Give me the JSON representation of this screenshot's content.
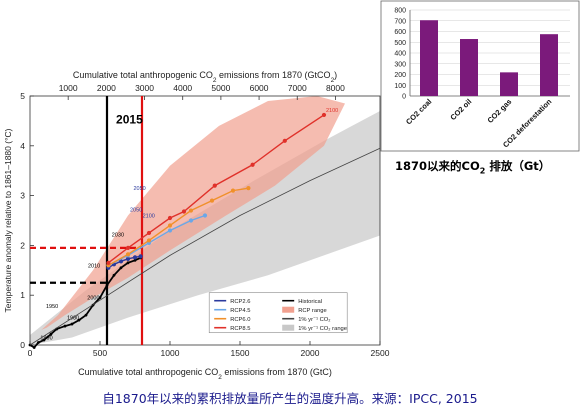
{
  "chart_data": [
    {
      "type": "line",
      "title": "",
      "ylabel": "Temperature anomaly relative to 1861–1880 (°C)",
      "xlabel_bottom_parts": [
        "Cumulative total anthropogenic CO",
        "2",
        " emissions from 1870 (GtC)"
      ],
      "xlabel_top_parts": [
        "Cumulative total anthropogenic CO",
        "2",
        " emissions from 1870 (GtCO",
        "2",
        ")"
      ],
      "xlim": [
        0,
        2500
      ],
      "ylim": [
        0,
        5
      ],
      "x_ticks": [
        0,
        500,
        1000,
        1500,
        2000,
        2500
      ],
      "y_ticks": [
        0,
        1,
        2,
        3,
        4,
        5
      ],
      "x_top_ticks": [
        1000,
        2000,
        3000,
        4000,
        5000,
        6000,
        7000,
        8000
      ],
      "annotation": "2015",
      "series": [
        {
          "name": "Historical",
          "color": "#000000",
          "points": [
            [
              0,
              0.0
            ],
            [
              30,
              -0.05
            ],
            [
              60,
              0.05
            ],
            [
              100,
              0.1
            ],
            [
              150,
              0.22
            ],
            [
              190,
              0.32
            ],
            [
              250,
              0.38
            ],
            [
              300,
              0.42
            ],
            [
              350,
              0.5
            ],
            [
              400,
              0.6
            ],
            [
              450,
              0.8
            ],
            [
              500,
              0.95
            ],
            [
              550,
              1.2
            ],
            [
              600,
              1.4
            ],
            [
              650,
              1.55
            ],
            [
              700,
              1.65
            ],
            [
              750,
              1.7
            ],
            [
              790,
              1.75
            ]
          ],
          "labels": [
            {
              "x": 60,
              "y": 0.05,
              "text": "1890"
            },
            {
              "x": 100,
              "y": 0.68,
              "text": "1950"
            },
            {
              "x": 250,
              "y": 0.45,
              "text": "1980"
            },
            {
              "x": 395,
              "y": 0.85,
              "text": "2000"
            },
            {
              "x": 400,
              "y": 1.5,
              "text": "2010"
            },
            {
              "x": 570,
              "y": 2.12,
              "text": "2030"
            },
            {
              "x": 700,
              "y": 2.62,
              "text": "2050"
            },
            {
              "x": 725,
              "y": 3.05,
              "text": "2050"
            },
            {
              "x": 790,
              "y": 2.5,
              "text": "2100"
            },
            {
              "x": 2100,
              "y": 4.62,
              "text": "2100"
            }
          ]
        },
        {
          "name": "RCP2.6",
          "color": "#2b3a9e",
          "points": [
            [
              560,
              1.55
            ],
            [
              600,
              1.62
            ],
            [
              650,
              1.68
            ],
            [
              700,
              1.73
            ],
            [
              750,
              1.76
            ],
            [
              790,
              1.78
            ]
          ]
        },
        {
          "name": "RCP4.5",
          "color": "#6aa7e8",
          "points": [
            [
              560,
              1.6
            ],
            [
              700,
              1.8
            ],
            [
              850,
              2.05
            ],
            [
              1000,
              2.3
            ],
            [
              1150,
              2.5
            ],
            [
              1250,
              2.6
            ]
          ]
        },
        {
          "name": "RCP6.0",
          "color": "#f0902a",
          "points": [
            [
              560,
              1.6
            ],
            [
              700,
              1.82
            ],
            [
              850,
              2.1
            ],
            [
              1000,
              2.4
            ],
            [
              1150,
              2.7
            ],
            [
              1300,
              2.9
            ],
            [
              1450,
              3.1
            ],
            [
              1560,
              3.15
            ]
          ]
        },
        {
          "name": "RCP8.5",
          "color": "#e0312a",
          "points": [
            [
              560,
              1.65
            ],
            [
              700,
              1.95
            ],
            [
              850,
              2.25
            ],
            [
              1000,
              2.55
            ],
            [
              1100,
              2.68
            ],
            [
              1320,
              3.2
            ],
            [
              1590,
              3.62
            ],
            [
              1820,
              4.1
            ],
            [
              2100,
              4.62
            ]
          ]
        },
        {
          "name": "1% yr⁻¹ CO₂",
          "color": "#444444",
          "points": [
            [
              0,
              0
            ],
            [
              500,
              0.9
            ],
            [
              1000,
              1.8
            ],
            [
              1500,
              2.6
            ],
            [
              2000,
              3.3
            ],
            [
              2500,
              3.95
            ]
          ]
        }
      ],
      "legend": [
        {
          "label": "RCP2.6",
          "kind": "line",
          "color": "#2b3a9e"
        },
        {
          "label": "RCP4.5",
          "kind": "line",
          "color": "#6aa7e8"
        },
        {
          "label": "RCP6.0",
          "kind": "line",
          "color": "#f0902a"
        },
        {
          "label": "RCP8.5",
          "kind": "line",
          "color": "#e0312a"
        },
        {
          "label": "Historical",
          "kind": "line",
          "color": "#000000"
        },
        {
          "label": "RCP range",
          "kind": "box",
          "color": "#f1a08f"
        },
        {
          "label": "1% yr⁻¹ CO₂",
          "kind": "line",
          "color": "#444444"
        },
        {
          "label": "1% yr⁻¹ CO₂ range",
          "kind": "box",
          "color": "#c8c8c8"
        }
      ],
      "reference_lines": [
        {
          "kind": "vertical",
          "x": 550,
          "color": "#000000"
        },
        {
          "kind": "vertical",
          "x": 800,
          "color": "#e01010"
        },
        {
          "kind": "horizontal-dashed",
          "y": 1.25,
          "color": "#000000"
        },
        {
          "kind": "horizontal-dashed",
          "y": 1.95,
          "color": "#e01010"
        }
      ]
    },
    {
      "type": "bar",
      "categories": [
        "CO2 coal",
        "CO2 oil",
        "CO2 gas",
        "CO2 deforestation"
      ],
      "values": [
        705,
        530,
        220,
        575
      ],
      "ylim": [
        0,
        800
      ],
      "y_ticks": [
        0,
        100,
        200,
        300,
        400,
        500,
        600,
        700,
        800
      ],
      "color": "#7b1a7b"
    }
  ],
  "inset_caption_parts": [
    "1870以来的CO",
    "2",
    " 排放（Gt）"
  ],
  "bottom_caption": "自1870年以来的累积排放量所产生的温度升高。来源：IPCC, 2015"
}
